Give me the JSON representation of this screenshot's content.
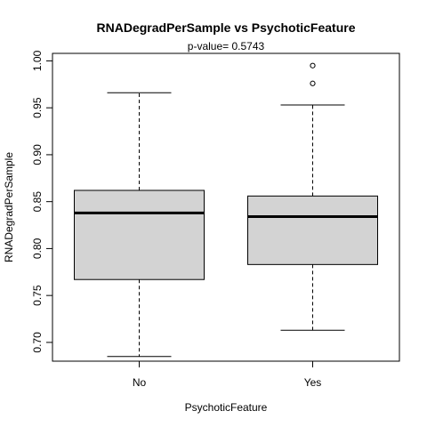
{
  "chart_data": {
    "type": "boxplot",
    "title": "RNADegradPerSample  vs  PsychoticFeature",
    "subtitle": "p-value= 0.5743",
    "xlabel": "PsychoticFeature",
    "ylabel": "RNADegradPerSample",
    "categories": [
      "No",
      "Yes"
    ],
    "ylim": [
      0.68,
      1.008
    ],
    "yticks": [
      0.7,
      0.75,
      0.8,
      0.85,
      0.9,
      0.95,
      1.0
    ],
    "ytick_labels": [
      "0.70",
      "0.75",
      "0.80",
      "0.85",
      "0.90",
      "0.95",
      "1.00"
    ],
    "grid": false,
    "box_color": "#d3d3d3",
    "boxes": [
      {
        "category": "No",
        "whisker_low": 0.685,
        "q1": 0.767,
        "median": 0.838,
        "q3": 0.862,
        "whisker_high": 0.966,
        "outliers": []
      },
      {
        "category": "Yes",
        "whisker_low": 0.713,
        "q1": 0.783,
        "median": 0.834,
        "q3": 0.856,
        "whisker_high": 0.953,
        "outliers": [
          0.976,
          0.995
        ]
      }
    ]
  }
}
